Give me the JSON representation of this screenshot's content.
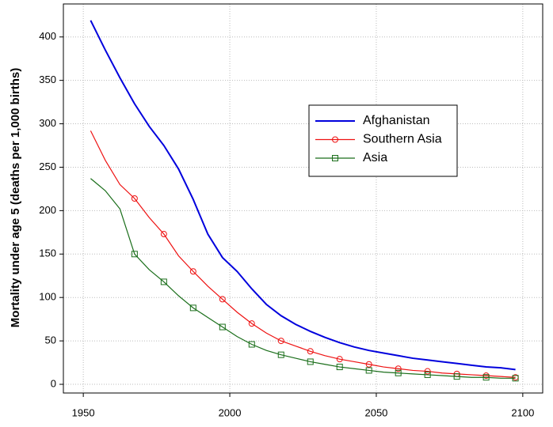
{
  "chart_data": {
    "type": "line",
    "y_label": "Mortality under age 5 (deaths per 1,000 births)",
    "x": [
      1952.5,
      1957.5,
      1962.5,
      1967.5,
      1972.5,
      1977.5,
      1982.5,
      1987.5,
      1992.5,
      1997.5,
      2002.5,
      2007.5,
      2012.5,
      2017.5,
      2022.5,
      2027.5,
      2032.5,
      2037.5,
      2042.5,
      2047.5,
      2052.5,
      2057.5,
      2062.5,
      2067.5,
      2072.5,
      2077.5,
      2082.5,
      2087.5,
      2092.5,
      2097.5
    ],
    "series": [
      {
        "name": "Afghanistan",
        "color": "#0000dd",
        "marker": "none",
        "values": [
          419,
          385,
          353,
          323,
          297,
          275,
          248,
          213,
          173,
          146,
          130,
          110,
          92,
          79,
          69,
          61,
          54,
          48,
          43,
          39,
          36,
          33,
          30,
          28,
          26,
          24,
          22,
          20,
          19,
          17
        ]
      },
      {
        "name": "Southern Asia",
        "color": "#ee1111",
        "marker": "circle",
        "values": [
          292,
          258,
          230,
          214,
          192,
          173,
          148,
          130,
          113,
          98,
          83,
          70,
          59,
          50,
          44,
          38,
          33,
          29,
          26,
          23,
          20,
          18,
          16,
          15,
          13,
          12,
          11,
          10,
          9,
          8
        ]
      },
      {
        "name": "Asia",
        "color": "#1a6e1a",
        "marker": "square",
        "values": [
          237,
          223,
          202,
          150,
          132,
          118,
          102,
          88,
          77,
          66,
          55,
          46,
          39,
          34,
          30,
          26,
          23,
          20,
          18,
          16,
          14,
          13,
          12,
          11,
          10,
          9,
          8,
          8,
          7,
          7
        ]
      }
    ],
    "marker_every": 2,
    "xlim": [
      1943.2,
      2106.8
    ],
    "xticks": [
      1950,
      2000,
      2050,
      2100
    ],
    "ylim": [
      -10,
      438
    ],
    "yticks": [
      0,
      50,
      100,
      150,
      200,
      250,
      300,
      350,
      400
    ],
    "grid": true,
    "legend": "center-right"
  }
}
